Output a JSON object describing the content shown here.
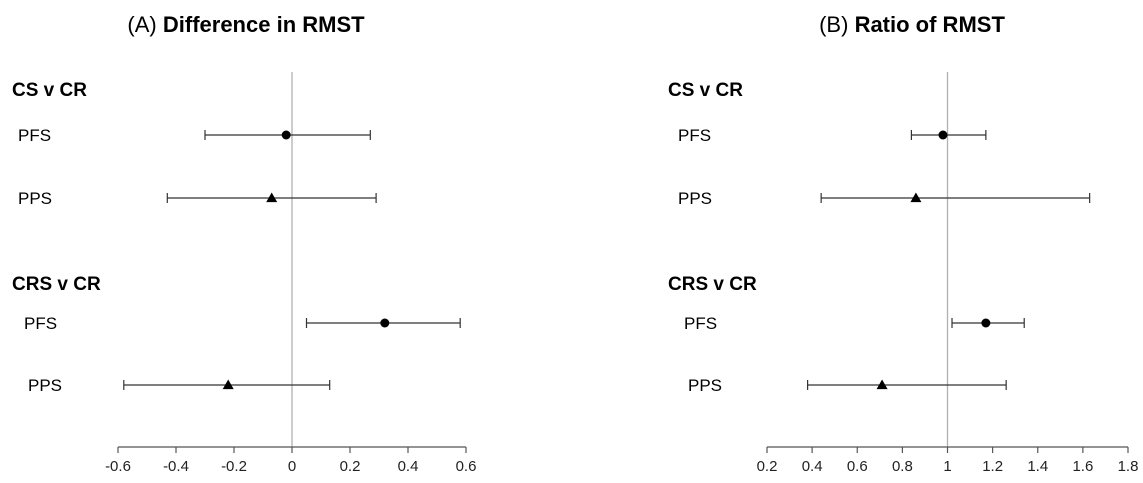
{
  "chart_data": [
    {
      "type": "forest",
      "title_prefix": "(A)",
      "title": "Difference in RMST",
      "reference_line": 0,
      "xlim": [
        -0.6,
        0.6
      ],
      "x_ticks": [
        "-0.6",
        "-0.4",
        "-0.2",
        "0",
        "0.2",
        "0.4",
        "0.6"
      ],
      "groups": [
        {
          "label": "CS v CR",
          "rows": [
            {
              "label": "PFS",
              "marker": "circle",
              "estimate": -0.02,
              "lower": -0.3,
              "upper": 0.27
            },
            {
              "label": "PPS",
              "marker": "triangle",
              "estimate": -0.07,
              "lower": -0.43,
              "upper": 0.29
            }
          ]
        },
        {
          "label": "CRS v CR",
          "rows": [
            {
              "label": "PFS",
              "marker": "circle",
              "estimate": 0.32,
              "lower": 0.05,
              "upper": 0.58
            },
            {
              "label": "PPS",
              "marker": "triangle",
              "estimate": -0.22,
              "lower": -0.58,
              "upper": 0.13
            }
          ]
        }
      ]
    },
    {
      "type": "forest",
      "title_prefix": "(B)",
      "title": "Ratio of RMST",
      "reference_line": 1,
      "xlim": [
        0.2,
        1.8
      ],
      "x_ticks": [
        "0.2",
        "0.4",
        "0.6",
        "0.8",
        "1",
        "1.2",
        "1.4",
        "1.6",
        "1.8"
      ],
      "groups": [
        {
          "label": "CS v CR",
          "rows": [
            {
              "label": "PFS",
              "marker": "circle",
              "estimate": 0.98,
              "lower": 0.84,
              "upper": 1.17
            },
            {
              "label": "PPS",
              "marker": "triangle",
              "estimate": 0.86,
              "lower": 0.44,
              "upper": 1.63
            }
          ]
        },
        {
          "label": "CRS v CR",
          "rows": [
            {
              "label": "PFS",
              "marker": "circle",
              "estimate": 1.17,
              "lower": 1.02,
              "upper": 1.34
            },
            {
              "label": "PPS",
              "marker": "triangle",
              "estimate": 0.71,
              "lower": 0.38,
              "upper": 1.26
            }
          ]
        }
      ]
    }
  ]
}
